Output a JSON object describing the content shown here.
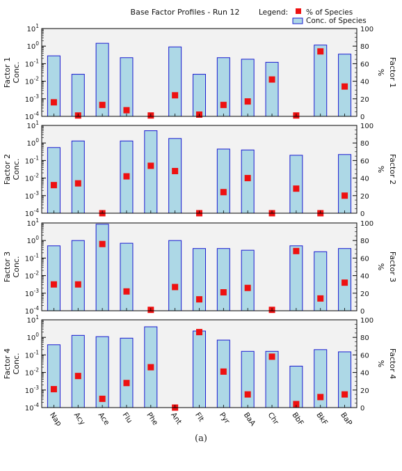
{
  "chart_data": {
    "type": "bar",
    "title": "Base Factor Profiles - Run 12",
    "legend": {
      "title": "Legend:",
      "placement": "top-right",
      "entries": [
        {
          "label": "% of Species",
          "marker": "square",
          "color": "#ee1111"
        },
        {
          "label": "Conc. of Species",
          "marker": "bar",
          "color": "#add8e6"
        }
      ]
    },
    "categories": [
      "Nap",
      "Acy",
      "Ace",
      "Flu",
      "Phe",
      "Ant",
      "Flt",
      "Pyr",
      "BaA",
      "Chr",
      "BbF",
      "BkF",
      "BaP"
    ],
    "left_axis": {
      "scale": "log",
      "range": [
        0.0001,
        10
      ],
      "tick_labels": [
        "10-4",
        "10-3",
        "10-2",
        "10-1",
        "100",
        "101"
      ]
    },
    "right_axis": {
      "scale": "linear",
      "range": [
        0,
        100
      ],
      "tick_labels": [
        "0",
        "20",
        "40",
        "60",
        "80",
        "100"
      ],
      "label": "%"
    },
    "bar_color": "#add8e6",
    "bar_edge_color": "#1a1ad0",
    "marker_color": "#ee1111",
    "plot_background": "#f2f2f2",
    "grid": false,
    "panels": [
      {
        "name": "Factor 1",
        "ylabel_left": [
          "Factor 1",
          "Conc."
        ],
        "ylabel_right": [
          "%",
          "Factor 1"
        ],
        "conc": [
          0.28,
          0.025,
          1.45,
          0.22,
          null,
          0.9,
          0.025,
          0.22,
          0.18,
          0.12,
          null,
          1.15,
          0.35
        ],
        "percent": [
          16,
          1,
          13,
          7,
          1,
          24,
          2,
          13,
          17,
          42,
          1,
          74,
          34
        ]
      },
      {
        "name": "Factor 2",
        "ylabel_left": [
          "Factor 2",
          "Conc."
        ],
        "ylabel_right": [
          "%",
          "Factor 2"
        ],
        "conc": [
          0.55,
          1.3,
          null,
          1.3,
          5.0,
          1.8,
          null,
          0.45,
          0.4,
          null,
          0.2,
          null,
          0.22
        ],
        "percent": [
          32,
          34,
          0,
          42,
          54,
          48,
          0,
          24,
          40,
          0,
          28,
          0,
          20
        ]
      },
      {
        "name": "Factor 3",
        "ylabel_left": [
          "Factor 3",
          "Conc."
        ],
        "ylabel_right": [
          "%",
          "Factor 3"
        ],
        "conc": [
          0.5,
          1.0,
          8.5,
          0.7,
          null,
          1.0,
          0.35,
          0.35,
          0.28,
          null,
          0.5,
          0.23,
          0.35
        ],
        "percent": [
          30,
          30,
          76,
          22,
          1,
          27,
          13,
          21,
          26,
          1,
          68,
          14,
          32
        ]
      },
      {
        "name": "Factor 4",
        "ylabel_left": [
          "Factor 4",
          "Conc."
        ],
        "ylabel_right": [
          "%",
          "Factor 4"
        ],
        "conc": [
          0.38,
          1.3,
          1.1,
          0.9,
          4.0,
          null,
          2.3,
          0.7,
          0.16,
          0.16,
          0.023,
          0.2,
          0.15
        ],
        "percent": [
          21,
          36,
          10,
          28,
          46,
          0,
          86,
          41,
          15,
          58,
          4,
          12,
          15
        ]
      }
    ]
  },
  "caption": "(a)"
}
